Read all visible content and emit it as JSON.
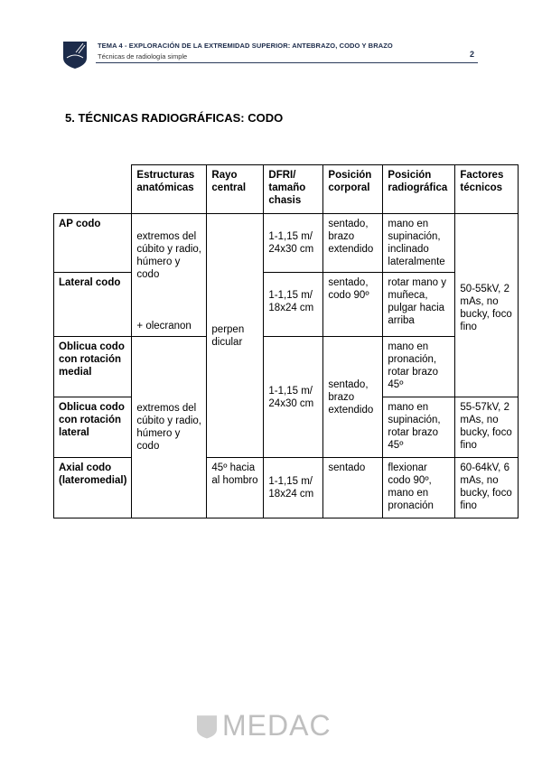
{
  "header": {
    "title": "TEMA 4 - EXPLORACIÓN DE LA EXTREMIDAD SUPERIOR: ANTEBRAZO, CODO Y BRAZO",
    "subtitle": "Técnicas de radiología simple",
    "page": "2"
  },
  "section_title": "5. TÉCNICAS RADIOGRÁFICAS: CODO",
  "table": {
    "headers": [
      "Estructuras anatómicas",
      "Rayo central",
      "DFRI/ tamaño chasis",
      "Posición corporal",
      "Posición radiográfica",
      "Factores técnicos"
    ],
    "rows": [
      {
        "name": "AP codo",
        "radiografica": "mano en supinación, inclinado lateralmente",
        "dfri": "1-1,15 m/ 24x30 cm",
        "corporal": "sentado, brazo extendido"
      },
      {
        "name": "Lateral codo",
        "radiografica": "rotar mano y muñeca, pulgar hacia arriba",
        "dfri": "1-1,15 m/ 18x24 cm",
        "corporal": "sentado, codo 90º"
      },
      {
        "name": "Oblicua codo con rotación medial",
        "radiografica": "mano en pronación, rotar brazo 45º"
      },
      {
        "name": "Oblicua codo con rotación lateral",
        "radiografica": "mano en supinación, rotar brazo 45º",
        "factores": "55-57kV, 2 mAs, no bucky, foco fino"
      },
      {
        "name": "Axial codo (lateromedial)",
        "rayo": "45º hacia al hombro",
        "dfri": "1-1,15 m/ 18x24 cm",
        "corporal": "sentado",
        "radiografica": "flexionar codo 90º, mano en pronación",
        "factores": "60-64kV, 6 mAs, no bucky, foco fino"
      }
    ],
    "estructuras_1": "extremos del cúbito y radio, húmero y codo",
    "estructuras_1_extra": "+ olecranon",
    "estructuras_2": "extremos del cúbito y radio, húmero y codo",
    "rayo_central": "perpendicular",
    "dfri_oblicuas": "1-1,15 m/ 24x30 cm",
    "corporal_oblicuas": "sentado, brazo extendido",
    "factores_1": "50-55kV, 2 mAs, no bucky, foco fino"
  },
  "footer": {
    "logo_text": "MEDAC"
  },
  "colors": {
    "brand": "#1c2b4a",
    "footer_logo": "#bfbfbf"
  }
}
